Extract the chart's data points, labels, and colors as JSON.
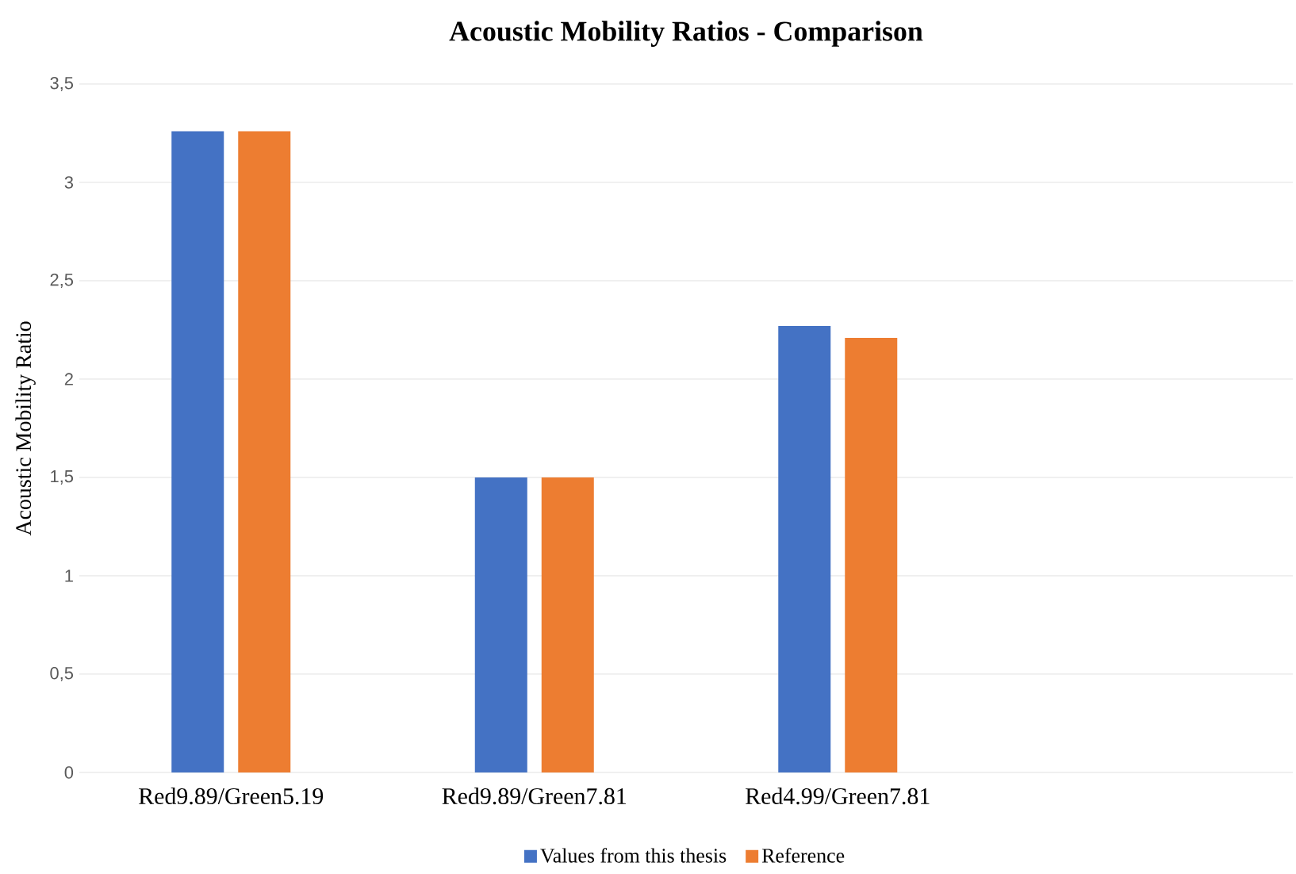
{
  "chart_data": {
    "type": "bar",
    "title": "Acoustic Mobility Ratios - Comparison",
    "ylabel": "Acoustic Mobility Ratio",
    "categories": [
      "Red9.89/Green5.19",
      "Red9.89/Green7.81",
      "Red4.99/Green7.81",
      null
    ],
    "series": [
      {
        "name": "Values from this thesis",
        "color": "#4472c4",
        "values": [
          3.26,
          1.5,
          2.27,
          null
        ]
      },
      {
        "name": "Reference",
        "color": "#ed7d31",
        "values": [
          3.26,
          1.5,
          2.21,
          null
        ]
      }
    ],
    "ylim": [
      0,
      3.5
    ],
    "yticks": [
      0,
      {
        "value": 0.5,
        "label": "0,5"
      },
      1,
      {
        "value": 1.5,
        "label": "1,5"
      },
      2,
      {
        "value": 2.5,
        "label": "2,5"
      },
      3,
      {
        "value": 3.5,
        "label": "3,5"
      }
    ],
    "grid": "y",
    "legend": "bottom"
  }
}
